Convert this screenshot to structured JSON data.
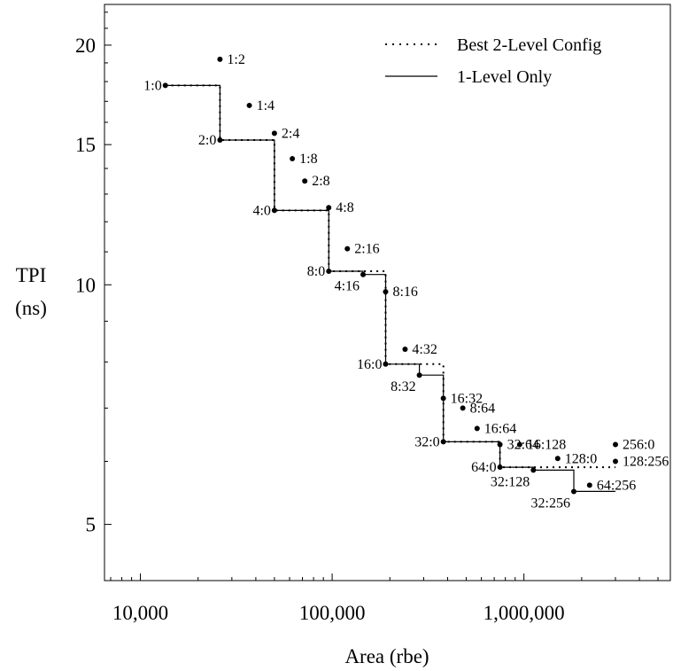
{
  "chart_data": {
    "type": "line",
    "xlabel": "Area (rbe)",
    "ylabel_line1": "TPI",
    "ylabel_line2": "(ns)",
    "x_scale": "log",
    "y_scale": "log",
    "xlim": [
      6500,
      5800000
    ],
    "ylim": [
      4.25,
      22.5
    ],
    "x_ticks": [
      {
        "value": 10000,
        "label": "10,000"
      },
      {
        "value": 100000,
        "label": "100,000"
      },
      {
        "value": 1000000,
        "label": "1,000,000"
      }
    ],
    "y_ticks": [
      {
        "value": 5,
        "label": "5"
      },
      {
        "value": 10,
        "label": "10"
      },
      {
        "value": 15,
        "label": "15"
      },
      {
        "value": 20,
        "label": "20"
      }
    ],
    "legend": {
      "position": "top-right",
      "entries": [
        {
          "label": "Best 2-Level Config",
          "style": "dotted"
        },
        {
          "label": "1-Level Only",
          "style": "solid"
        }
      ]
    },
    "points": [
      {
        "label": "1:0",
        "x": 13500,
        "y": 17.8
      },
      {
        "label": "1:2",
        "x": 26000,
        "y": 19.2
      },
      {
        "label": "2:0",
        "x": 26000,
        "y": 15.2
      },
      {
        "label": "1:4",
        "x": 37000,
        "y": 16.8
      },
      {
        "label": "2:4",
        "x": 50000,
        "y": 15.5
      },
      {
        "label": "1:8",
        "x": 62000,
        "y": 14.4
      },
      {
        "label": "2:8",
        "x": 72000,
        "y": 13.5
      },
      {
        "label": "4:0",
        "x": 50000,
        "y": 12.4
      },
      {
        "label": "4:8",
        "x": 96000,
        "y": 12.5
      },
      {
        "label": "2:16",
        "x": 120000,
        "y": 11.1
      },
      {
        "label": "8:0",
        "x": 96000,
        "y": 10.4
      },
      {
        "label": "4:16",
        "x": 145000,
        "y": 10.3
      },
      {
        "label": "8:16",
        "x": 190000,
        "y": 9.8
      },
      {
        "label": "4:32",
        "x": 240000,
        "y": 8.3
      },
      {
        "label": "16:0",
        "x": 190000,
        "y": 7.95
      },
      {
        "label": "8:32",
        "x": 285000,
        "y": 7.7
      },
      {
        "label": "16:32",
        "x": 380000,
        "y": 7.2
      },
      {
        "label": "8:64",
        "x": 480000,
        "y": 7.0
      },
      {
        "label": "16:64",
        "x": 570000,
        "y": 6.6
      },
      {
        "label": "32:0",
        "x": 380000,
        "y": 6.35
      },
      {
        "label": "32:64",
        "x": 750000,
        "y": 6.3
      },
      {
        "label": "16:128",
        "x": 950000,
        "y": 6.3
      },
      {
        "label": "128:0",
        "x": 1500000,
        "y": 6.05
      },
      {
        "label": "256:0",
        "x": 3000000,
        "y": 6.3
      },
      {
        "label": "64:0",
        "x": 750000,
        "y": 5.9
      },
      {
        "label": "128:256",
        "x": 3000000,
        "y": 6.0
      },
      {
        "label": "32:128",
        "x": 1120000,
        "y": 5.85
      },
      {
        "label": "64:256",
        "x": 2200000,
        "y": 5.6
      },
      {
        "label": "32:256",
        "x": 1820000,
        "y": 5.5
      }
    ],
    "series": [
      {
        "name": "1-Level Only",
        "style": "solid",
        "x": [
          13500,
          26000,
          26000,
          50000,
          50000,
          96000,
          96000,
          145000,
          145000,
          190000,
          190000,
          285000,
          285000,
          380000,
          380000,
          750000,
          750000,
          1120000,
          1120000,
          1820000,
          1820000,
          3000000
        ],
        "y": [
          17.8,
          17.8,
          15.2,
          15.2,
          12.4,
          12.4,
          10.4,
          10.4,
          10.3,
          10.3,
          7.95,
          7.95,
          7.7,
          7.7,
          6.35,
          6.35,
          5.9,
          5.9,
          5.85,
          5.85,
          5.5,
          5.5
        ]
      },
      {
        "name": "Best 2-Level Config",
        "style": "dotted",
        "x": [
          13500,
          26000,
          26000,
          50000,
          50000,
          96000,
          96000,
          190000,
          190000,
          380000,
          380000,
          750000,
          750000,
          3000000
        ],
        "y": [
          17.8,
          17.8,
          15.2,
          15.2,
          12.4,
          12.4,
          10.4,
          10.4,
          7.95,
          7.95,
          6.35,
          6.35,
          5.9,
          5.9
        ]
      }
    ]
  }
}
